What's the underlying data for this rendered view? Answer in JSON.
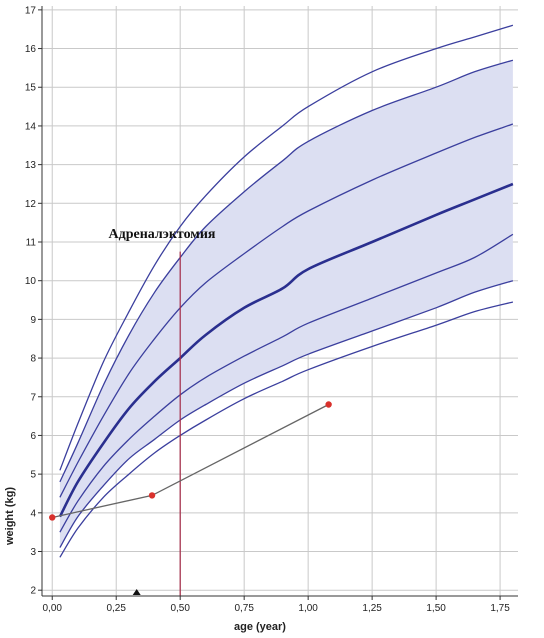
{
  "chart_data": {
    "type": "line",
    "title": "",
    "xlabel": "age (year)",
    "ylabel": "weight (kg)",
    "xlim": [
      -0.04,
      1.82
    ],
    "ylim": [
      1.85,
      17.1
    ],
    "grid": true,
    "x_ticks": [
      0,
      0.25,
      0.5,
      0.75,
      1.0,
      1.25,
      1.5,
      1.75
    ],
    "x_tick_labels": [
      "0,00",
      "0,25",
      "0,50",
      "0,75",
      "1,00",
      "1,25",
      "1,50",
      "1,75"
    ],
    "y_ticks": [
      2,
      3,
      4,
      5,
      6,
      7,
      8,
      9,
      10,
      11,
      12,
      13,
      14,
      15,
      16,
      17
    ],
    "y_tick_labels": [
      "2",
      "3",
      "4",
      "5",
      "6",
      "7",
      "8",
      "9",
      "10",
      "11",
      "12",
      "13",
      "14",
      "15",
      "16",
      "17"
    ],
    "percentile_x": [
      0.03,
      0.1,
      0.2,
      0.3,
      0.4,
      0.5,
      0.6,
      0.75,
      0.9,
      1.0,
      1.25,
      1.5,
      1.65,
      1.8
    ],
    "percentile_curves": [
      {
        "values": [
          5.1,
          6.3,
          7.9,
          9.2,
          10.4,
          11.4,
          12.2,
          13.2,
          14.0,
          14.5,
          15.4,
          16.0,
          16.3,
          16.6
        ],
        "color": "#3b3f9e",
        "width": 1.3
      },
      {
        "values": [
          4.8,
          5.8,
          7.3,
          8.6,
          9.7,
          10.6,
          11.4,
          12.3,
          13.1,
          13.6,
          14.4,
          15.0,
          15.4,
          15.7
        ],
        "color": "#3b3f9e",
        "width": 1.3
      },
      {
        "values": [
          4.4,
          5.3,
          6.5,
          7.6,
          8.5,
          9.3,
          9.95,
          10.7,
          11.4,
          11.8,
          12.6,
          13.3,
          13.7,
          14.05
        ],
        "color": "#3b3f9e",
        "width": 1.3
      },
      {
        "values": [
          3.9,
          4.8,
          5.8,
          6.7,
          7.4,
          8.0,
          8.6,
          9.3,
          9.8,
          10.3,
          11.0,
          11.7,
          12.1,
          12.5
        ],
        "color": "#2a2f8f",
        "width": 2.6
      },
      {
        "values": [
          3.5,
          4.3,
          5.2,
          5.9,
          6.5,
          7.05,
          7.5,
          8.05,
          8.55,
          8.9,
          9.55,
          10.2,
          10.6,
          11.2
        ],
        "color": "#3b3f9e",
        "width": 1.3
      },
      {
        "values": [
          3.1,
          3.9,
          4.7,
          5.4,
          5.9,
          6.4,
          6.8,
          7.35,
          7.8,
          8.1,
          8.7,
          9.3,
          9.7,
          10.0
        ],
        "color": "#3b3f9e",
        "width": 1.3
      },
      {
        "values": [
          2.85,
          3.6,
          4.4,
          5.0,
          5.55,
          6.0,
          6.4,
          6.95,
          7.4,
          7.7,
          8.3,
          8.85,
          9.2,
          9.45
        ],
        "color": "#3b3f9e",
        "width": 1.3
      }
    ],
    "band": {
      "upper_curve": 1,
      "lower_curve": 5,
      "color": "#dcdff2"
    },
    "series": [
      {
        "x": [
          0.0,
          0.39,
          1.08
        ],
        "values": [
          3.88,
          4.45,
          6.8
        ],
        "color": "#d9312c",
        "line_color": "#666666"
      }
    ],
    "reference_line": {
      "x": 0.5,
      "y_top": 10.75,
      "color": "#a32845"
    },
    "annotation": {
      "text": "Адреналэктомия",
      "x": 0.22,
      "y": 11.1
    },
    "marker": {
      "x": 0.33,
      "symbol": "triangle-up",
      "color": "#111111"
    }
  }
}
